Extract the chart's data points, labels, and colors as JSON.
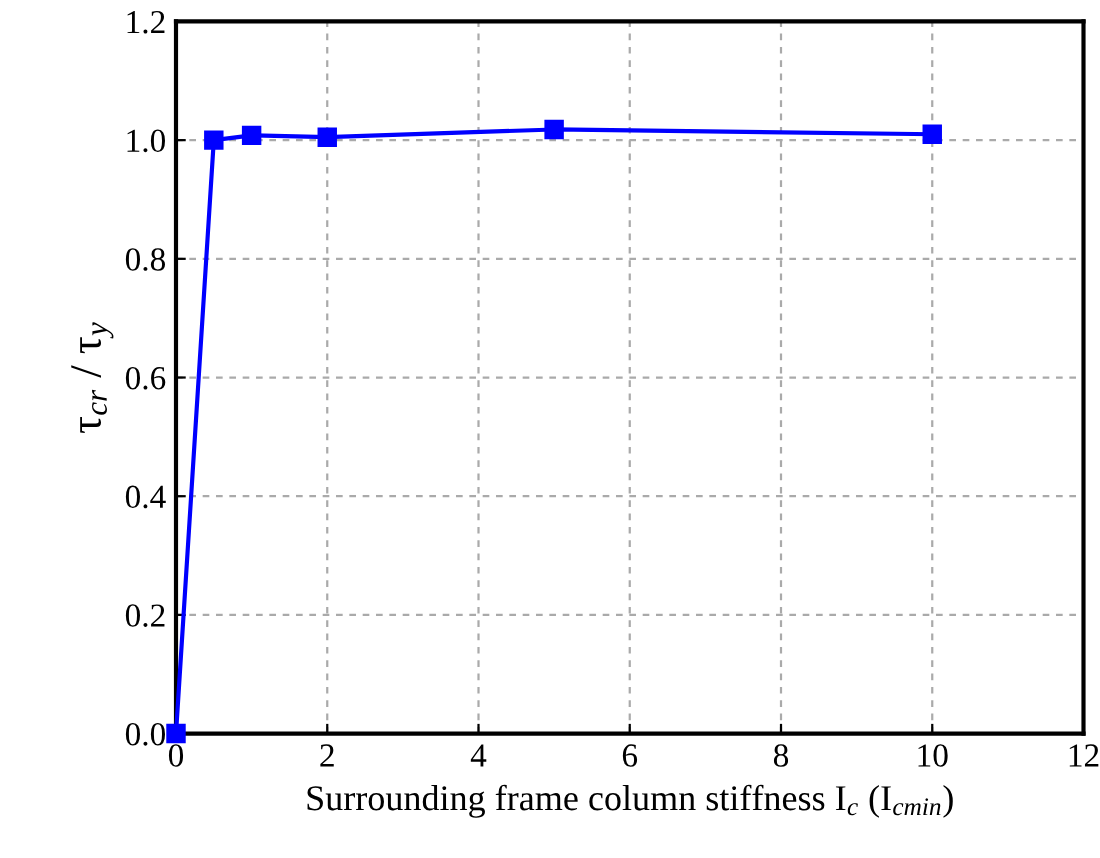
{
  "chart_data": {
    "type": "line",
    "xlabel": "Surrounding frame column stiffness I$_{c}$ (I$_{cmin}$)",
    "ylabel": "τ$_{cr}$ / τ$_{y}$",
    "x": [
      0,
      0.5,
      1,
      2,
      5,
      10
    ],
    "series": [
      {
        "color": "#0000ff",
        "values": [
          0,
          1.0,
          1.008,
          1.005,
          1.018,
          1.01
        ]
      }
    ],
    "xlim": [
      0,
      12
    ],
    "xticks": [
      0,
      2,
      4,
      6,
      8,
      10,
      12
    ],
    "ylim": [
      0,
      1.2
    ],
    "yticks": [
      {
        "value": 0,
        "label": "0.0"
      },
      {
        "value": 0.2,
        "label": "0.2"
      },
      {
        "value": 0.4,
        "label": "0.4"
      },
      {
        "value": 0.6,
        "label": "0.6"
      },
      {
        "value": 0.8,
        "label": "0.8"
      },
      {
        "value": 1.0,
        "label": "1.0"
      },
      {
        "value": 1.2,
        "label": "1.2"
      }
    ],
    "grid": true,
    "marker": "square",
    "line_style": "solid"
  }
}
